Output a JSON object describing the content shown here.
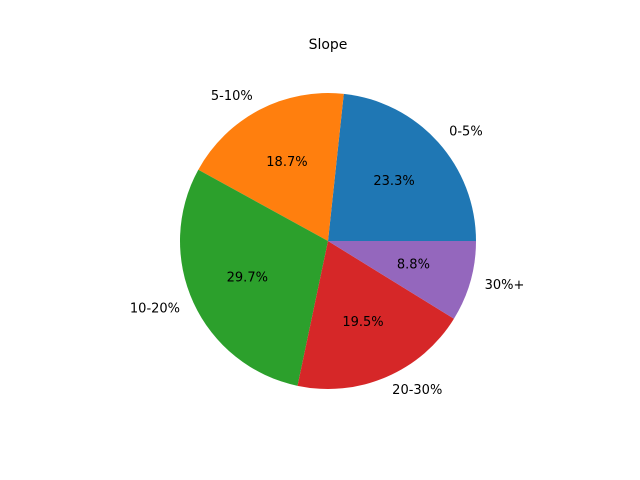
{
  "chart_data": {
    "type": "pie",
    "title": "Slope",
    "categories": [
      "0-5%",
      "5-10%",
      "10-20%",
      "20-30%",
      "30%+"
    ],
    "values": [
      23.3,
      18.7,
      29.7,
      19.5,
      8.8
    ],
    "value_labels": [
      "23.3%",
      "18.7%",
      "29.7%",
      "19.5%",
      "8.8%"
    ],
    "colors": [
      "#1f77b4",
      "#ff7f0e",
      "#2ca02c",
      "#d62728",
      "#9467bd"
    ],
    "start_angle_deg": 0,
    "direction": "counterclockwise",
    "legend": "none"
  }
}
